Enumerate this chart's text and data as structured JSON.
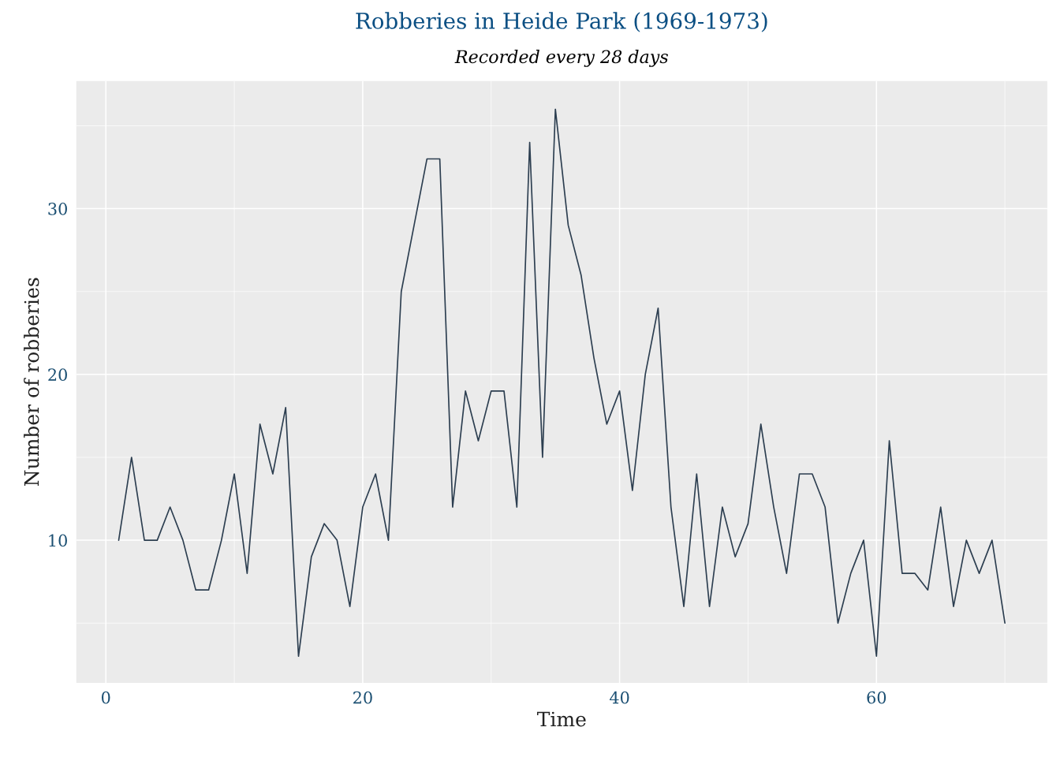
{
  "chart_data": {
    "type": "line",
    "title": "Robberies in Heide Park (1969-1973)",
    "subtitle": "Recorded every 28 days",
    "xlabel": "Time",
    "ylabel": "Number of robberies",
    "x": [
      1,
      2,
      3,
      4,
      5,
      6,
      7,
      8,
      9,
      10,
      11,
      12,
      13,
      14,
      15,
      16,
      17,
      18,
      19,
      20,
      21,
      22,
      23,
      24,
      25,
      26,
      27,
      28,
      29,
      30,
      31,
      32,
      33,
      34,
      35,
      36,
      37,
      38,
      39,
      40,
      41,
      42,
      43,
      44,
      45,
      46,
      47,
      48,
      49,
      50,
      51,
      52,
      53,
      54,
      55,
      56,
      57,
      58,
      59,
      60,
      61,
      62,
      63,
      64,
      65,
      66,
      67,
      68,
      69,
      70
    ],
    "series": [
      {
        "color": "#2c3e50",
        "values": [
          10,
          15,
          10,
          10,
          12,
          10,
          7,
          7,
          10,
          14,
          8,
          17,
          14,
          18,
          3,
          9,
          11,
          10,
          6,
          12,
          14,
          10,
          25,
          29,
          33,
          33,
          12,
          19,
          16,
          19,
          19,
          12,
          34,
          15,
          36,
          29,
          26,
          21,
          17,
          19,
          13,
          20,
          24,
          12,
          6,
          14,
          6,
          12,
          9,
          11,
          17,
          12,
          8,
          14,
          14,
          12,
          5,
          8,
          10,
          3,
          16,
          8,
          8,
          7,
          12,
          6,
          10,
          8,
          10,
          5
        ]
      }
    ],
    "xlim": [
      -2.3,
      73.3
    ],
    "ylim": [
      1.4,
      37.7
    ],
    "xticks": [
      0,
      20,
      40,
      60
    ],
    "yticks": [
      10,
      20,
      30
    ],
    "grid": true,
    "marker": "none",
    "line_style": "solid"
  }
}
